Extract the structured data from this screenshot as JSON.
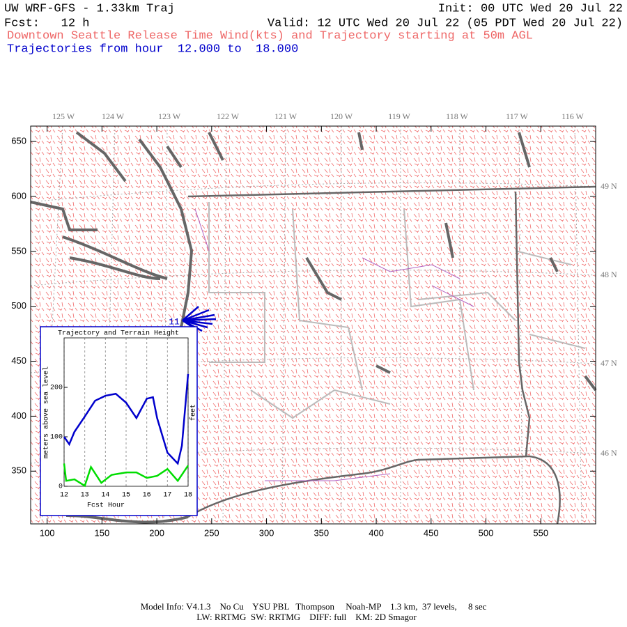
{
  "header": {
    "title": "UW WRF-GFS - 1.33km Traj",
    "init": "Init: 00 UTC Wed 20 Jul 22",
    "fcst": "Fcst:   12 h",
    "valid": "Valid: 12 UTC Wed 20 Jul 22 (05 PDT Wed 20 Jul 22)",
    "subtitle": "Downtown Seattle Release Time Wind(kts) and Trajectory starting at 50m AGL",
    "trajectories": "Trajectories from hour  12.000 to  18.000"
  },
  "map": {
    "xlim": [
      85,
      600
    ],
    "ylim": [
      302,
      664
    ],
    "xticks": [
      100,
      150,
      200,
      250,
      300,
      350,
      400,
      450,
      500,
      550
    ],
    "yticks": [
      350,
      400,
      450,
      500,
      550,
      600,
      650
    ],
    "lon_labels": [
      "125 W",
      "124 W",
      "123 W",
      "122 W",
      "121 W",
      "120 W",
      "119 W",
      "118 W",
      "117 W",
      "116 W"
    ],
    "lat_labels": [
      "49 N",
      "48 N",
      "47 N",
      "46 N"
    ],
    "release_label": "11"
  },
  "chart_data": {
    "type": "line",
    "title": "Trajectory and Terrain Height",
    "x_label": "Fcst Hour",
    "y_label": "meters above sea level",
    "y2_label": "feet",
    "xlim": [
      12,
      18
    ],
    "ylim": [
      0,
      300
    ],
    "xticks": [
      12,
      13,
      14,
      15,
      16,
      17,
      18
    ],
    "yticks": [
      0,
      100,
      200
    ],
    "series": [
      {
        "name": "Trajectory",
        "color": "#0000cc",
        "x": [
          12,
          12.25,
          12.5,
          13,
          13.5,
          14,
          14.5,
          15,
          15.5,
          16,
          16.3,
          16.5,
          17,
          17.5,
          17.7,
          18
        ],
        "values": [
          100,
          85,
          110,
          141,
          173,
          183,
          187,
          169,
          138,
          177,
          180,
          138,
          68,
          46,
          82,
          227
        ]
      },
      {
        "name": "Terrain",
        "color": "#00dd00",
        "x": [
          12,
          12.1,
          12.5,
          13,
          13.3,
          13.8,
          14.3,
          15,
          15.5,
          16,
          16.5,
          17,
          17.5,
          18
        ],
        "values": [
          46,
          11,
          14,
          1,
          39,
          7,
          23,
          28,
          28,
          17,
          21,
          35,
          11,
          42
        ]
      }
    ]
  },
  "footer": {
    "line1": "Model Info: V4.1.3    No Cu    YSU PBL   Thompson     Noah-MP    1.3 km,  37 levels,     8 sec",
    "line2": "LW: RRTMG  SW: RRTMG    DIFF: full    KM: 2D Smagor"
  }
}
